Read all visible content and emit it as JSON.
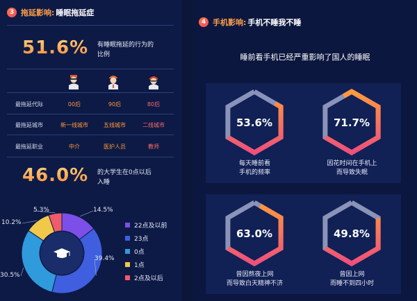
{
  "left": {
    "section_num": "3",
    "section_key": "拖延影响:",
    "section_title": "睡眠拖延症",
    "stat1": {
      "value": "51.6%",
      "desc_line1": "有睡眠拖延的行为的",
      "desc_line2": "比例"
    },
    "table": {
      "columns": [
        "00后",
        "90后",
        "80后"
      ],
      "rows": [
        {
          "label": "最拖延代际",
          "values": [
            "00后",
            "90后",
            "80后"
          ],
          "colors": [
            "#ff9a3c",
            "#ff9a3c",
            "#ff6a6a"
          ]
        },
        {
          "label": "最拖延城市",
          "values": [
            "新一线城市",
            "五线城市",
            "二线城市"
          ],
          "colors": [
            "#ff9a3c",
            "#ff9a3c",
            "#ff6a6a"
          ]
        },
        {
          "label": "最拖延职业",
          "values": [
            "中介",
            "医护人员",
            "教师"
          ],
          "colors": [
            "#ff9a3c",
            "#ff9a3c",
            "#ff6a6a"
          ]
        }
      ]
    },
    "stat2": {
      "value": "46.0%",
      "desc_line1": "的大学生在0点以后",
      "desc_line2": "入睡"
    }
  },
  "chart_data": {
    "type": "pie",
    "subtype": "donut",
    "categories": [
      "22点及以前",
      "23点",
      "0点",
      "1点",
      "2点及以后"
    ],
    "values": [
      14.5,
      39.4,
      30.5,
      10.2,
      5.3
    ],
    "labels": [
      "14.5%",
      "39.4%",
      "30.5%",
      "10.2%",
      "5.3%"
    ],
    "colors": [
      "#7b4fe8",
      "#3f5fe0",
      "#2f9bdc",
      "#f2c84b",
      "#ef5b6a"
    ],
    "center_icon": "graduation-cap-icon",
    "legend_position": "right"
  },
  "right": {
    "section_num": "4",
    "section_key": "手机影响:",
    "section_title": "手机不睡我不睡",
    "subtitle": "睡前看手机已经严重影响了国人的睡眠",
    "cards": [
      {
        "value": "53.6%",
        "fraction": 0.536,
        "line1": "每天睡前看",
        "line2": "手机的频率"
      },
      {
        "value": "71.7%",
        "fraction": 0.717,
        "line1": "因花时间在手机上",
        "line2": "而导致失眠"
      },
      {
        "value": "63.0%",
        "fraction": 0.63,
        "line1": "曾因熬夜上网",
        "line2": "而导致白天精神不济"
      },
      {
        "value": "49.8%",
        "fraction": 0.498,
        "line1": "曾因上网",
        "line2": "而睡不到四小时"
      }
    ]
  },
  "colors": {
    "orange": "#ff9a3c",
    "pink": "#ef4f7a",
    "track": "#8a93b8",
    "accent_red": "#ff6a6a"
  }
}
